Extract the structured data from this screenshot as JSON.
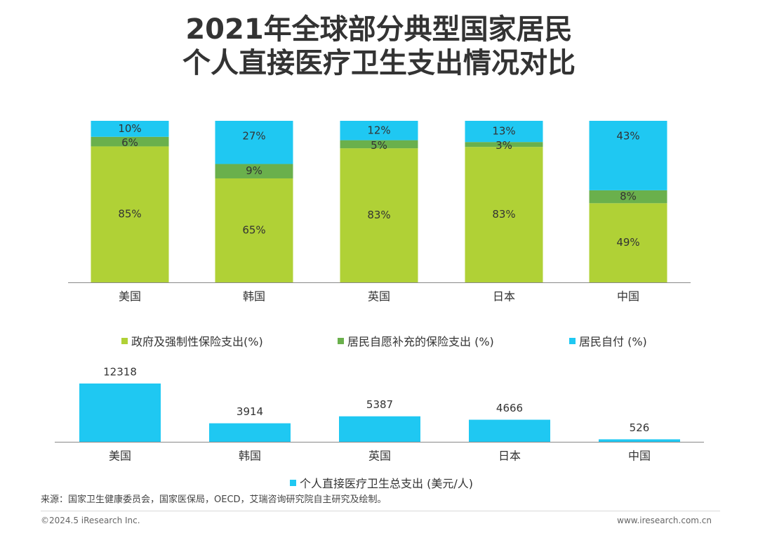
{
  "title_line1": "2021年全球部分典型国家居民",
  "title_line2": "个人直接医疗卫生支出情况对比",
  "colors": {
    "gov": "#b0d136",
    "ins": "#6ab04c",
    "self": "#1fc8f2",
    "axis": "#888888",
    "text": "#333333"
  },
  "chart_data": [
    {
      "type": "bar",
      "stacked": true,
      "categories": [
        "美国",
        "韩国",
        "英国",
        "日本",
        "中国"
      ],
      "series": [
        {
          "name": "政府及强制性保险支出(%)",
          "values": [
            85,
            65,
            83,
            83,
            49
          ]
        },
        {
          "name": "居民自愿补充的保险支出 (%)",
          "values": [
            6,
            9,
            5,
            3,
            8
          ]
        },
        {
          "name": "居民自付 (%)",
          "values": [
            10,
            27,
            12,
            13,
            43
          ]
        }
      ],
      "labels": [
        [
          "85%",
          "65%",
          "83%",
          "83%",
          "49%"
        ],
        [
          "6%",
          "9%",
          "5%",
          "3%",
          "8%"
        ],
        [
          "10%",
          "27%",
          "12%",
          "13%",
          "43%"
        ]
      ],
      "legend_position": "bottom"
    },
    {
      "type": "bar",
      "categories": [
        "美国",
        "韩国",
        "英国",
        "日本",
        "中国"
      ],
      "series": [
        {
          "name": "个人直接医疗卫生总支出 (美元/人)",
          "values": [
            12318,
            3914,
            5387,
            4666,
            526
          ]
        }
      ],
      "legend_position": "bottom"
    }
  ],
  "source": "来源：国家卫生健康委员会，国家医保局，OECD，艾瑞咨询研究院自主研究及绘制。",
  "copyright": "©2024.5 iResearch Inc.",
  "website": "www.iresearch.com.cn"
}
